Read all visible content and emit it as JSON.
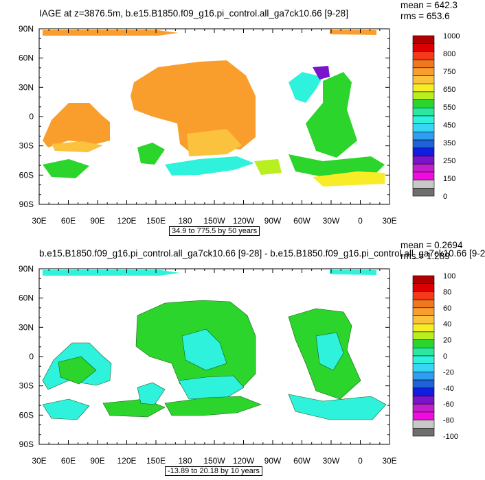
{
  "figure": {
    "panels": [
      {
        "title": "IAGE at z=3876.5m, b.e15.B1850.f09_g16.pi_control.all_ga7ck10.66 [9-28]",
        "mean_text": "mean = 642.3",
        "rms_text": "rms = 653.6",
        "range_text": "34.9 to 775.5 by 50 years"
      },
      {
        "title": "b.e15.B1850.f09_g16.pi_control.all_ga7ck10.66 [9-28] - b.e15.B1850.f09_g16.pi_control.all_ga7ck10.66 [9-2",
        "mean_text": "mean = 0.2694",
        "rms_text": "rms = 1.289",
        "range_text": "-13.89 to 20.18 by 10 years"
      }
    ]
  },
  "chart_data": [
    {
      "type": "heatmap",
      "title": "IAGE at z=3876.5m, b.e15.B1850.f09_g16.pi_control.all_ga7ck10.66 [9-28]",
      "x_ticks": [
        "30E",
        "60E",
        "90E",
        "120E",
        "150E",
        "180",
        "150W",
        "120W",
        "90W",
        "60W",
        "30W",
        "0",
        "30E"
      ],
      "y_ticks": [
        "90N",
        "60N",
        "30N",
        "0",
        "30S",
        "60S",
        "90S"
      ],
      "xlim": [
        30,
        390
      ],
      "ylim": [
        -90,
        90
      ],
      "colorbar_labels": [
        "1000",
        "800",
        "750",
        "650",
        "550",
        "450",
        "350",
        "250",
        "150",
        "0"
      ],
      "colorbar_colors": [
        "#b00000",
        "#dd0000",
        "#f53a1a",
        "#f0761f",
        "#f99e2d",
        "#fbc23d",
        "#f8ec26",
        "#b9ee1f",
        "#2bd52b",
        "#29e8a0",
        "#2ef2dc",
        "#37d6f5",
        "#2d9ff0",
        "#1f62d8",
        "#0f1ee0",
        "#7a14cc",
        "#c020cc",
        "#f00ce0",
        "#c8c8c8",
        "#6e6e6e"
      ],
      "mean": 642.3,
      "rms": 653.6,
      "range": "34.9 to 775.5 by 50 years"
    },
    {
      "type": "heatmap",
      "title": "b.e15.B1850.f09_g16.pi_control.all_ga7ck10.66 [9-28] - b.e15.B1850.f09_g16.pi_control.all_ga7ck10.66 [9-2",
      "x_ticks": [
        "30E",
        "60E",
        "90E",
        "120E",
        "150E",
        "180",
        "150W",
        "120W",
        "90W",
        "60W",
        "30W",
        "0",
        "30E"
      ],
      "y_ticks": [
        "90N",
        "60N",
        "30N",
        "0",
        "30S",
        "60S",
        "90S"
      ],
      "xlim": [
        30,
        390
      ],
      "ylim": [
        -90,
        90
      ],
      "colorbar_labels": [
        "100",
        "80",
        "60",
        "40",
        "20",
        "0",
        "-20",
        "-40",
        "-60",
        "-80",
        "-100"
      ],
      "colorbar_colors": [
        "#b00000",
        "#dd0000",
        "#f53a1a",
        "#f0761f",
        "#f99e2d",
        "#fbc23d",
        "#f8ec26",
        "#b9ee1f",
        "#2bd52b",
        "#29e8a0",
        "#2ef2dc",
        "#37d6f5",
        "#2d9ff0",
        "#1f62d8",
        "#0f1ee0",
        "#7a14cc",
        "#c020cc",
        "#f00ce0",
        "#c8c8c8",
        "#6e6e6e"
      ],
      "mean": 0.2694,
      "rms": 1.289,
      "range": "-13.89 to 20.18 by 10 years"
    }
  ]
}
